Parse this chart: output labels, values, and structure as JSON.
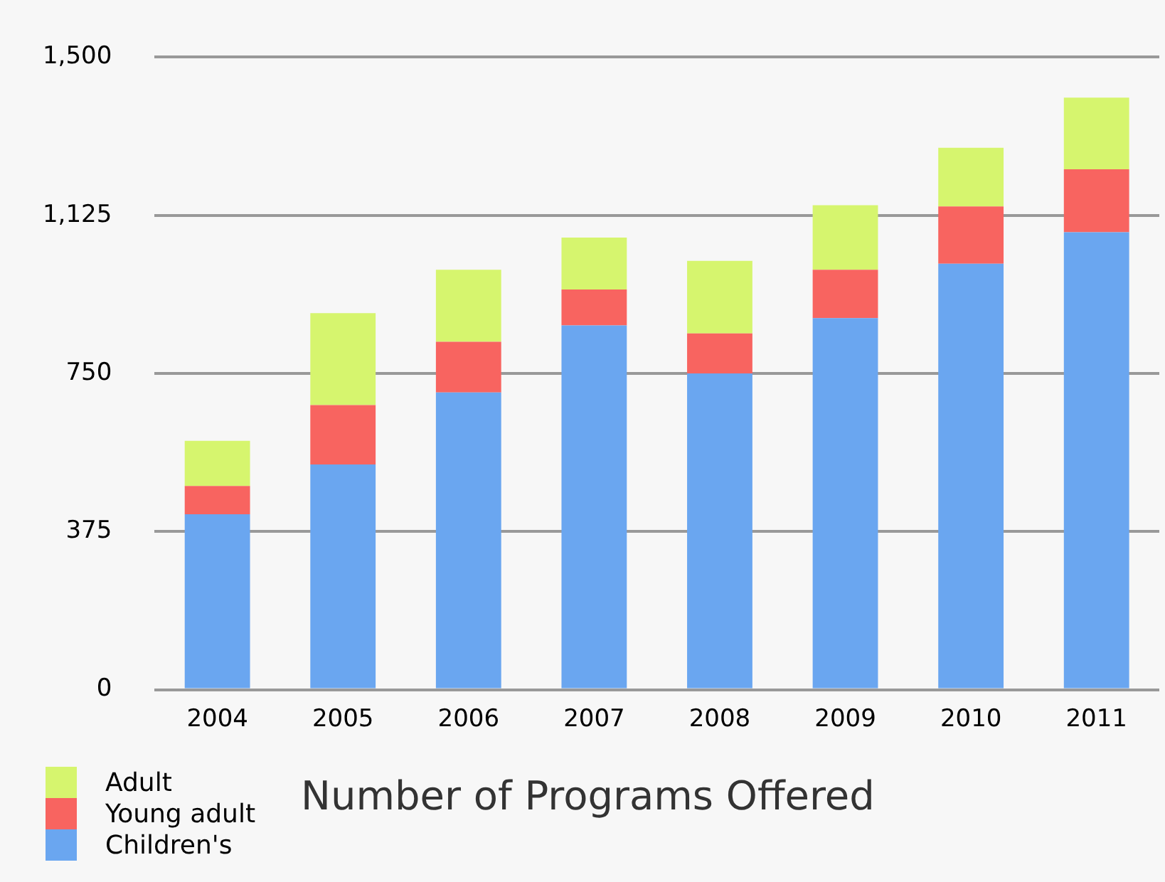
{
  "chart_data": {
    "type": "bar",
    "title": "Number of Programs Offered",
    "categories": [
      "2004",
      "2005",
      "2006",
      "2007",
      "2008",
      "2009",
      "2010",
      "2011"
    ],
    "stacked": true,
    "series": [
      {
        "name": "Children's",
        "color": "#6aa6f0",
        "values": [
          416,
          534,
          705,
          864,
          750,
          881,
          1010,
          1085
        ]
      },
      {
        "name": "Young adult",
        "color": "#f86460",
        "values": [
          67,
          141,
          120,
          85,
          95,
          115,
          136,
          149
        ]
      },
      {
        "name": "Adult",
        "color": "#d6f56e",
        "values": [
          107,
          218,
          171,
          123,
          172,
          153,
          139,
          170
        ]
      }
    ],
    "ylim": [
      0,
      1500
    ],
    "yticks": [
      0,
      {
        "value": 375,
        "label": "375"
      },
      {
        "value": 750,
        "label": "750"
      },
      {
        "value": 1125,
        "label": "1,125"
      },
      {
        "value": 1500,
        "label": "1,500"
      }
    ],
    "grid": "y",
    "legend": "bottom left"
  }
}
